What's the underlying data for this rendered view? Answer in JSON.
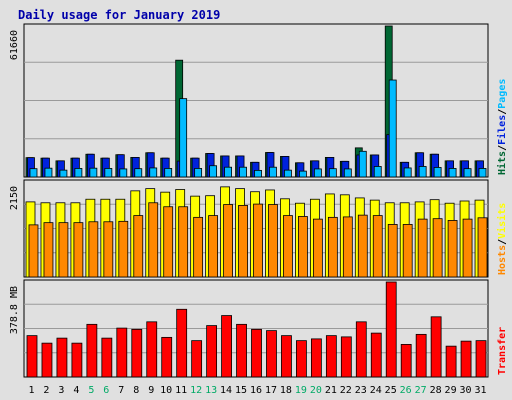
{
  "chart_data": {
    "type": "bar",
    "title": "Daily usage for January 2019",
    "categories": [
      "1",
      "2",
      "3",
      "4",
      "5",
      "6",
      "7",
      "8",
      "9",
      "10",
      "11",
      "12",
      "13",
      "14",
      "15",
      "16",
      "17",
      "18",
      "19",
      "20",
      "21",
      "22",
      "23",
      "24",
      "25",
      "26",
      "27",
      "28",
      "29",
      "30",
      "31"
    ],
    "weekend_days": [
      "5",
      "6",
      "12",
      "13",
      "19",
      "20",
      "26",
      "27"
    ],
    "panels": [
      {
        "name": "hits-files-pages",
        "ymax_label": "61660",
        "ymax": 61660,
        "legend": [
          "Hits",
          "Files",
          "Pages"
        ],
        "series": [
          {
            "name": "Hits",
            "color": "#006633",
            "values": [
              7900,
              7700,
              6600,
              7700,
              9300,
              7700,
              9100,
              8000,
              9900,
              7700,
              47700,
              7700,
              9600,
              8600,
              8600,
              6000,
              10000,
              8400,
              5800,
              6600,
              8000,
              6400,
              11900,
              9000,
              61660,
              6000,
              9900,
              9300,
              6600,
              6600,
              6600
            ]
          },
          {
            "name": "Files",
            "color": "#0022dd",
            "values": [
              7900,
              7700,
              6600,
              7700,
              9300,
              7700,
              9100,
              8000,
              9900,
              7700,
              6500,
              7700,
              9600,
              8600,
              8600,
              6000,
              10000,
              8400,
              5800,
              6600,
              8000,
              6400,
              9000,
              9000,
              17300,
              6000,
              9900,
              9300,
              6600,
              6600,
              6600
            ]
          },
          {
            "name": "Pages",
            "color": "#00bbff",
            "values": [
              3400,
              3600,
              2800,
              3500,
              3600,
              3500,
              3300,
              3400,
              3700,
              3500,
              32000,
              3500,
              4600,
              4000,
              4000,
              2700,
              4000,
              2800,
              2400,
              3300,
              3400,
              3300,
              10500,
              4300,
              39600,
              3700,
              4300,
              3900,
              3500,
              3400,
              3500
            ]
          }
        ]
      },
      {
        "name": "visits-hosts",
        "ymax_label": "2150",
        "ymax": 2150,
        "legend": [
          "Hosts",
          "Visits"
        ],
        "series": [
          {
            "name": "Visits",
            "color": "#ffff00",
            "values": [
              1700,
              1680,
              1680,
              1680,
              1760,
              1760,
              1760,
              1950,
              2000,
              1920,
              1980,
              1830,
              1840,
              2040,
              2000,
              1930,
              1970,
              1770,
              1670,
              1760,
              1880,
              1860,
              1790,
              1740,
              1680,
              1680,
              1700,
              1750,
              1670,
              1720,
              1740
            ]
          },
          {
            "name": "Hosts",
            "color": "#ff8800",
            "values": [
              1180,
              1230,
              1230,
              1230,
              1250,
              1250,
              1260,
              1390,
              1680,
              1590,
              1590,
              1350,
              1390,
              1640,
              1620,
              1650,
              1640,
              1390,
              1370,
              1310,
              1350,
              1360,
              1400,
              1390,
              1190,
              1190,
              1310,
              1320,
              1280,
              1310,
              1340
            ]
          }
        ]
      },
      {
        "name": "transfer",
        "ymax_label": "378.8 MB",
        "ymax": 378.8,
        "legend": [
          "Transfer"
        ],
        "series": [
          {
            "name": "Transfer",
            "color": "#ff0000",
            "values": [
              165,
              135,
              155,
              135,
              210,
              155,
              195,
              190,
              220,
              158,
              270,
              145,
              205,
              245,
              210,
              190,
              185,
              165,
              145,
              152,
              165,
              160,
              220,
              175,
              378.8,
              130,
              170,
              240,
              123,
              143,
              145
            ]
          }
        ]
      }
    ]
  }
}
